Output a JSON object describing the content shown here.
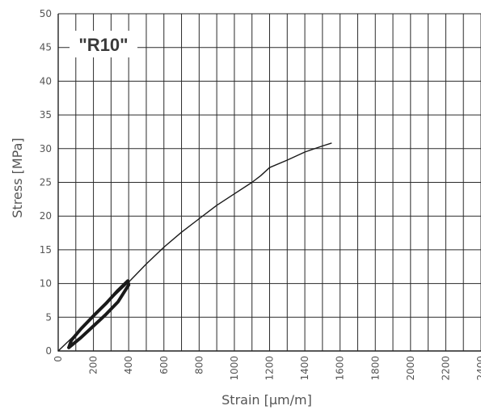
{
  "chart_data": {
    "type": "line",
    "annotation": "\"R10\"",
    "xlabel": "Strain [µm/m]",
    "ylabel": "Stress [MPa]",
    "xlim": [
      0,
      2400
    ],
    "ylim": [
      0,
      50
    ],
    "x_ticks": [
      "0",
      "200",
      "400",
      "600",
      "800",
      "1000",
      "1200",
      "1400",
      "1600",
      "1800",
      "2000",
      "2200",
      "2400"
    ],
    "y_ticks": [
      "0",
      "5",
      "10",
      "15",
      "20",
      "25",
      "30",
      "35",
      "40",
      "45",
      "50"
    ],
    "grid": true,
    "legend": "none",
    "colors": {
      "line": "#1a1a1a",
      "grid": "#2a2a2a",
      "text": "#555555"
    },
    "series": [
      {
        "values": [
          {
            "x": 0,
            "y": 0
          },
          {
            "x": 100,
            "y": 2.5
          },
          {
            "x": 200,
            "y": 5.0
          },
          {
            "x": 300,
            "y": 7.7
          },
          {
            "x": 400,
            "y": 10.2
          },
          {
            "x": 500,
            "y": 12.9
          },
          {
            "x": 600,
            "y": 15.4
          },
          {
            "x": 700,
            "y": 17.6
          },
          {
            "x": 800,
            "y": 19.6
          },
          {
            "x": 900,
            "y": 21.6
          },
          {
            "x": 1000,
            "y": 23.3
          },
          {
            "x": 1100,
            "y": 25.0
          },
          {
            "x": 1150,
            "y": 26.0
          },
          {
            "x": 1200,
            "y": 27.2
          },
          {
            "x": 1300,
            "y": 28.3
          },
          {
            "x": 1400,
            "y": 29.5
          },
          {
            "x": 1500,
            "y": 30.4
          },
          {
            "x": 1550,
            "y": 30.8
          }
        ]
      },
      {
        "values": [
          {
            "x": 60,
            "y": 0.5
          },
          {
            "x": 130,
            "y": 2.0
          },
          {
            "x": 200,
            "y": 3.7
          },
          {
            "x": 270,
            "y": 5.4
          },
          {
            "x": 340,
            "y": 7.3
          },
          {
            "x": 400,
            "y": 9.8
          },
          {
            "x": 395,
            "y": 10.4
          },
          {
            "x": 340,
            "y": 9.0
          },
          {
            "x": 270,
            "y": 7.0
          },
          {
            "x": 200,
            "y": 5.2
          },
          {
            "x": 130,
            "y": 3.3
          },
          {
            "x": 75,
            "y": 1.6
          },
          {
            "x": 60,
            "y": 0.5
          }
        ]
      }
    ]
  }
}
